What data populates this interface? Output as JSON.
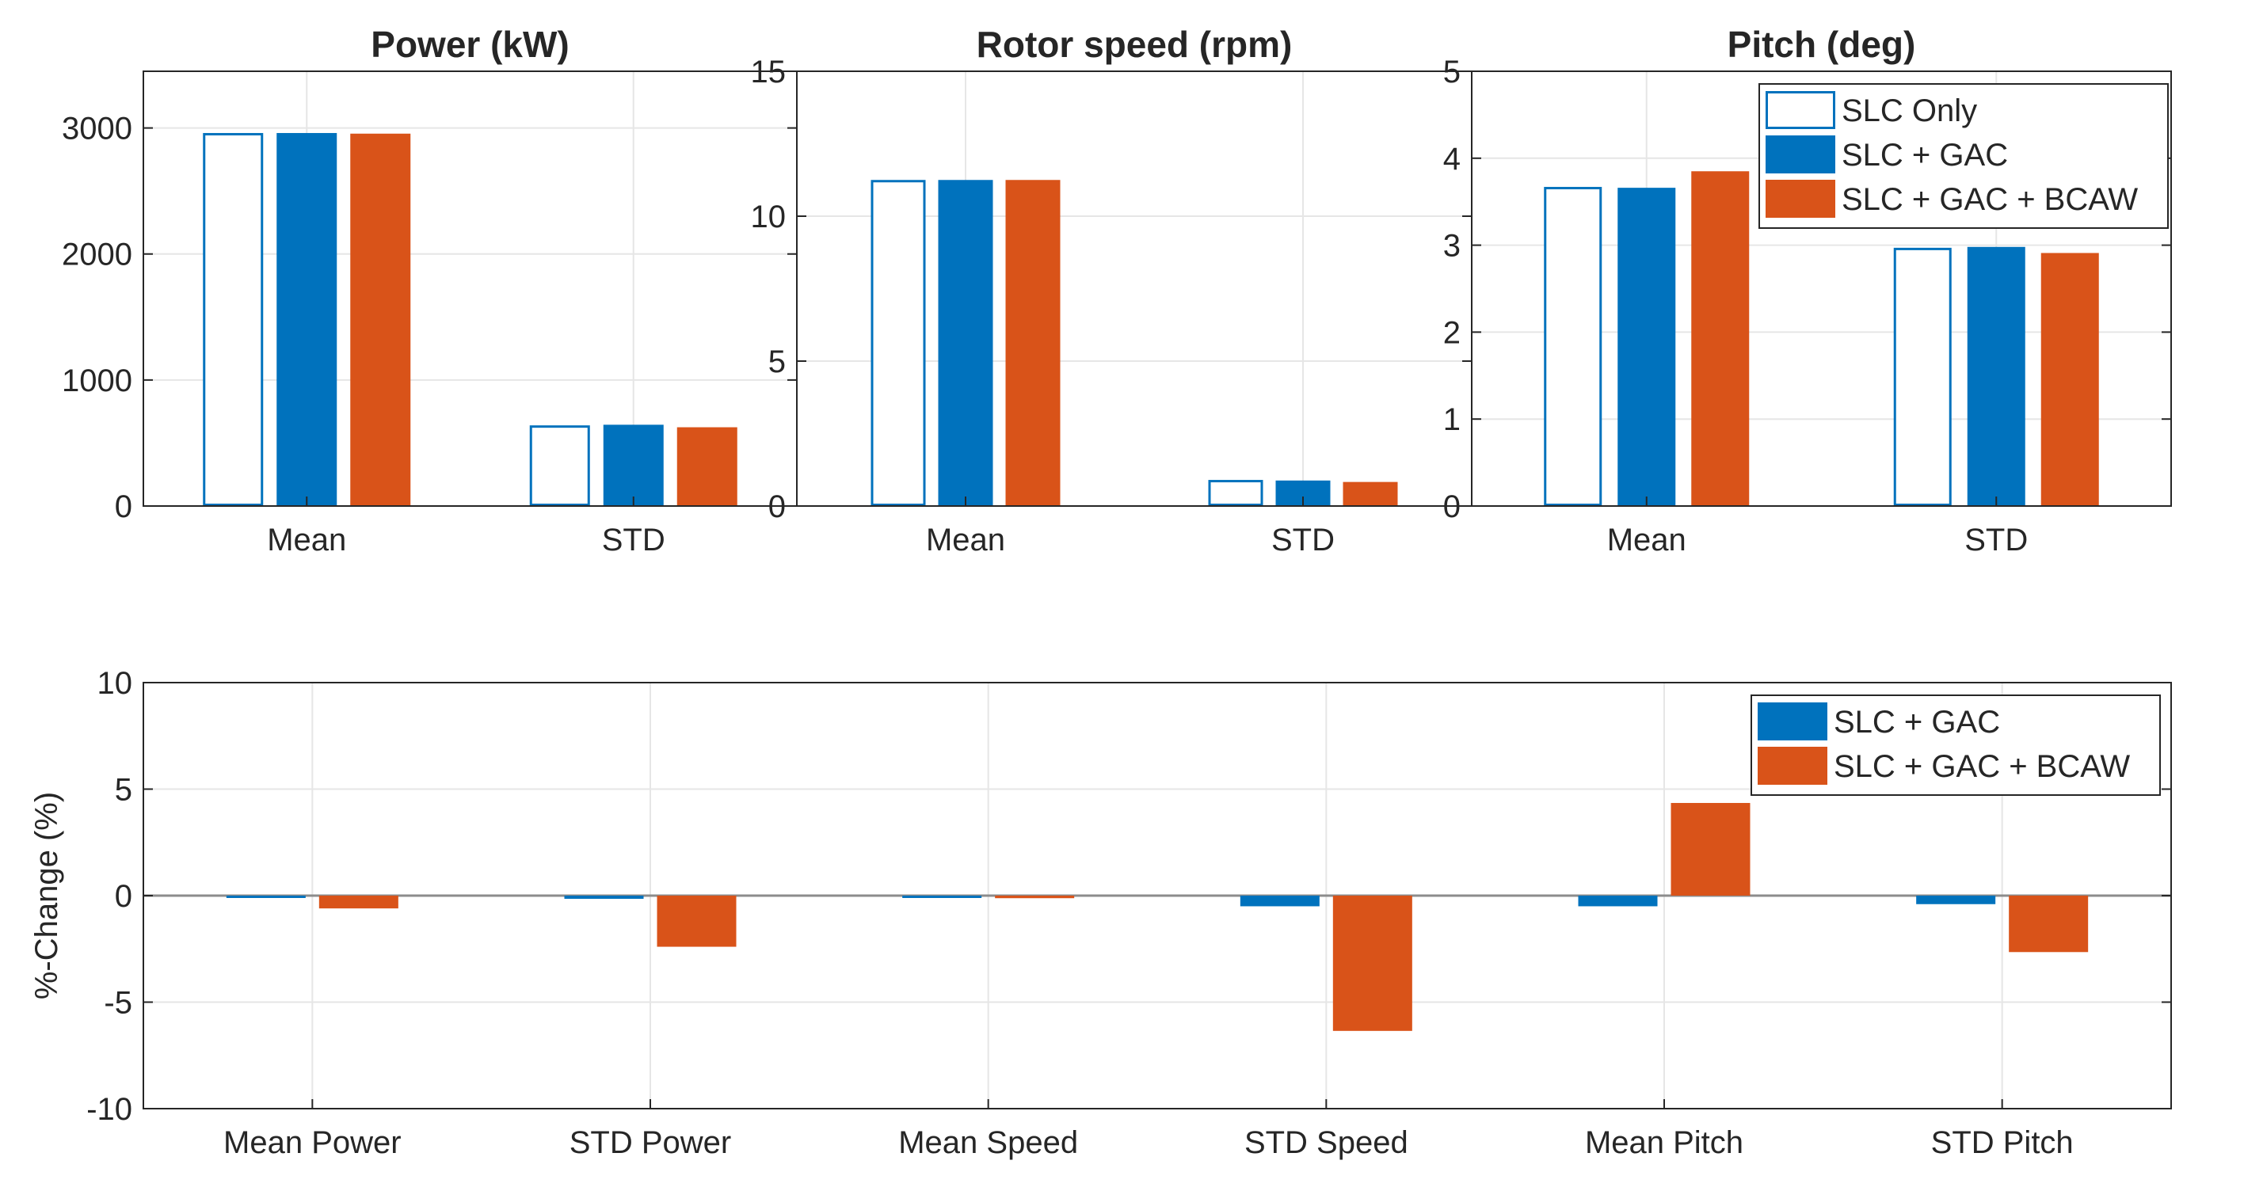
{
  "colors": {
    "slc_only": "#0072BD",
    "gac": "#0072BD",
    "bcaw": "#D95319",
    "axis": "#262626",
    "grid": "#e6e6e6",
    "zero": "#8c8c8c"
  },
  "chart_data": [
    {
      "type": "bar",
      "title": "Power (kW)",
      "categories": [
        "Mean",
        "STD"
      ],
      "ylim": [
        0,
        3450
      ],
      "yticks": [
        0,
        1000,
        2000,
        3000
      ],
      "ytick_labels": [
        "0",
        "1000",
        "2000",
        "3000"
      ],
      "series": [
        {
          "name": "SLC Only",
          "style": "outline",
          "values": [
            2960,
            640
          ]
        },
        {
          "name": "SLC + GAC",
          "style": "blue",
          "values": [
            2960,
            645
          ]
        },
        {
          "name": "SLC + GAC + BCAW",
          "style": "orange",
          "values": [
            2955,
            625
          ]
        }
      ]
    },
    {
      "type": "bar",
      "title": "Rotor speed (rpm)",
      "categories": [
        "Mean",
        "STD"
      ],
      "ylim": [
        0,
        15
      ],
      "yticks": [
        0,
        5,
        10,
        15
      ],
      "ytick_labels": [
        "0",
        "5",
        "10",
        "15"
      ],
      "series": [
        {
          "name": "SLC Only",
          "style": "outline",
          "values": [
            11.25,
            0.9
          ]
        },
        {
          "name": "SLC + GAC",
          "style": "blue",
          "values": [
            11.25,
            0.88
          ]
        },
        {
          "name": "SLC + GAC + BCAW",
          "style": "orange",
          "values": [
            11.25,
            0.83
          ]
        }
      ]
    },
    {
      "type": "bar",
      "title": "Pitch (deg)",
      "categories": [
        "Mean",
        "STD"
      ],
      "ylim": [
        0,
        5
      ],
      "yticks": [
        0,
        1,
        2,
        3,
        4,
        5
      ],
      "ytick_labels": [
        "0",
        "1",
        "2",
        "3",
        "4",
        "5"
      ],
      "legend": {
        "position": "top-right",
        "entries": [
          "SLC Only",
          "SLC + GAC",
          "SLC + GAC + BCAW"
        ]
      },
      "series": [
        {
          "name": "SLC Only",
          "style": "outline",
          "values": [
            3.67,
            2.97
          ]
        },
        {
          "name": "SLC + GAC",
          "style": "blue",
          "values": [
            3.66,
            2.98
          ]
        },
        {
          "name": "SLC + GAC + BCAW",
          "style": "orange",
          "values": [
            3.85,
            2.91
          ]
        }
      ]
    },
    {
      "type": "bar",
      "title": "",
      "ylabel": "%-Change (%)",
      "categories": [
        "Mean Power",
        "STD Power",
        "Mean Speed",
        "STD Speed",
        "Mean Pitch",
        "STD Pitch"
      ],
      "ylim": [
        -10,
        10
      ],
      "yticks": [
        -10,
        -5,
        0,
        5,
        10
      ],
      "ytick_labels": [
        "-10",
        "-5",
        "0",
        "5",
        "10"
      ],
      "legend": {
        "position": "top-right",
        "entries": [
          "SLC + GAC",
          "SLC + GAC + BCAW"
        ]
      },
      "series": [
        {
          "name": "SLC + GAC",
          "style": "blue",
          "values": [
            -0.05,
            -0.15,
            -0.05,
            -0.5,
            -0.5,
            -0.4
          ]
        },
        {
          "name": "SLC + GAC + BCAW",
          "style": "orange",
          "values": [
            -0.6,
            -2.4,
            -0.12,
            -6.35,
            4.35,
            -2.65
          ]
        }
      ]
    }
  ]
}
